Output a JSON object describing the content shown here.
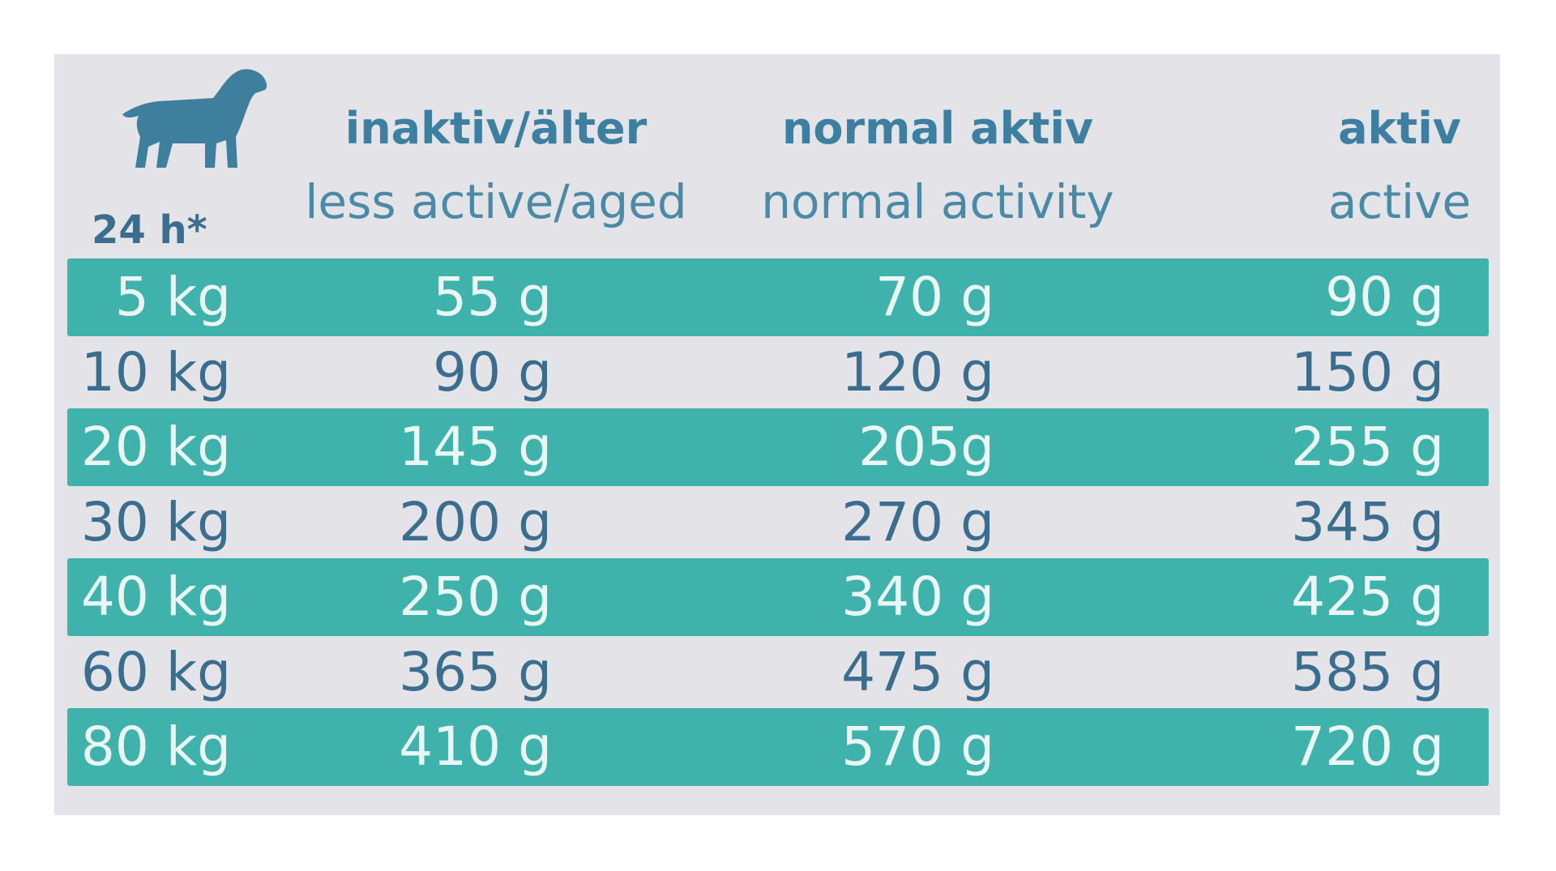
{
  "table": {
    "corner": "24 h*",
    "headers": [
      {
        "de": "inaktiv/älter",
        "en": "less active/aged"
      },
      {
        "de": "normal aktiv",
        "en": "normal activity"
      },
      {
        "de": "aktiv",
        "en": "active"
      }
    ],
    "rows": [
      [
        "5 kg",
        "55 g",
        "70 g",
        "90 g"
      ],
      [
        "10 kg",
        "90 g",
        "120 g",
        "150 g"
      ],
      [
        "20 kg",
        "145 g",
        "205g",
        "255 g"
      ],
      [
        "30 kg",
        "200 g",
        "270 g",
        "345 g"
      ],
      [
        "40 kg",
        "250 g",
        "340 g",
        "425 g"
      ],
      [
        "60 kg",
        "365 g",
        "475 g",
        "585 g"
      ],
      [
        "80 kg",
        "410 g",
        "570 g",
        "720 g"
      ]
    ]
  }
}
